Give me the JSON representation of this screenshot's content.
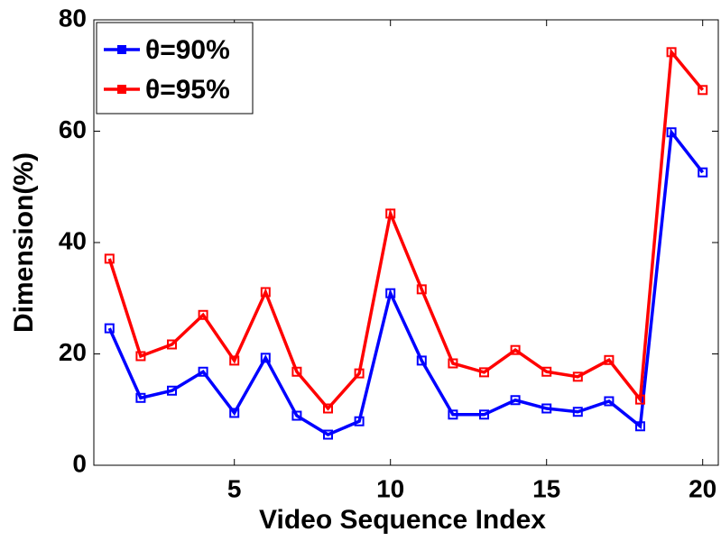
{
  "chart_data": {
    "type": "line",
    "x_label": "Video Sequence Index",
    "y_label": "Dimension(%)",
    "x": [
      1,
      2,
      3,
      4,
      5,
      6,
      7,
      8,
      9,
      10,
      11,
      12,
      13,
      14,
      15,
      16,
      17,
      18,
      19,
      20
    ],
    "series": [
      {
        "name": "θ=90%",
        "color": "#0000ff",
        "values": [
          24.6,
          12.1,
          13.4,
          16.8,
          9.4,
          19.3,
          8.9,
          5.5,
          7.9,
          30.9,
          18.8,
          9.1,
          9.1,
          11.7,
          10.2,
          9.6,
          11.5,
          7.0,
          59.8,
          52.6
        ]
      },
      {
        "name": "θ=95%",
        "color": "#ff0000",
        "values": [
          37.1,
          19.6,
          21.7,
          27.0,
          18.8,
          31.1,
          16.8,
          10.2,
          16.5,
          45.2,
          31.6,
          18.3,
          16.7,
          20.7,
          16.8,
          15.9,
          18.9,
          11.8,
          74.2,
          67.4
        ]
      }
    ],
    "xlim": [
      0.5,
      20.5
    ],
    "xticks": [
      5,
      10,
      15,
      20
    ],
    "ylim": [
      0,
      80
    ],
    "yticks": [
      0,
      20,
      40,
      60,
      80
    ],
    "grid": false,
    "legend": "upper-left"
  }
}
